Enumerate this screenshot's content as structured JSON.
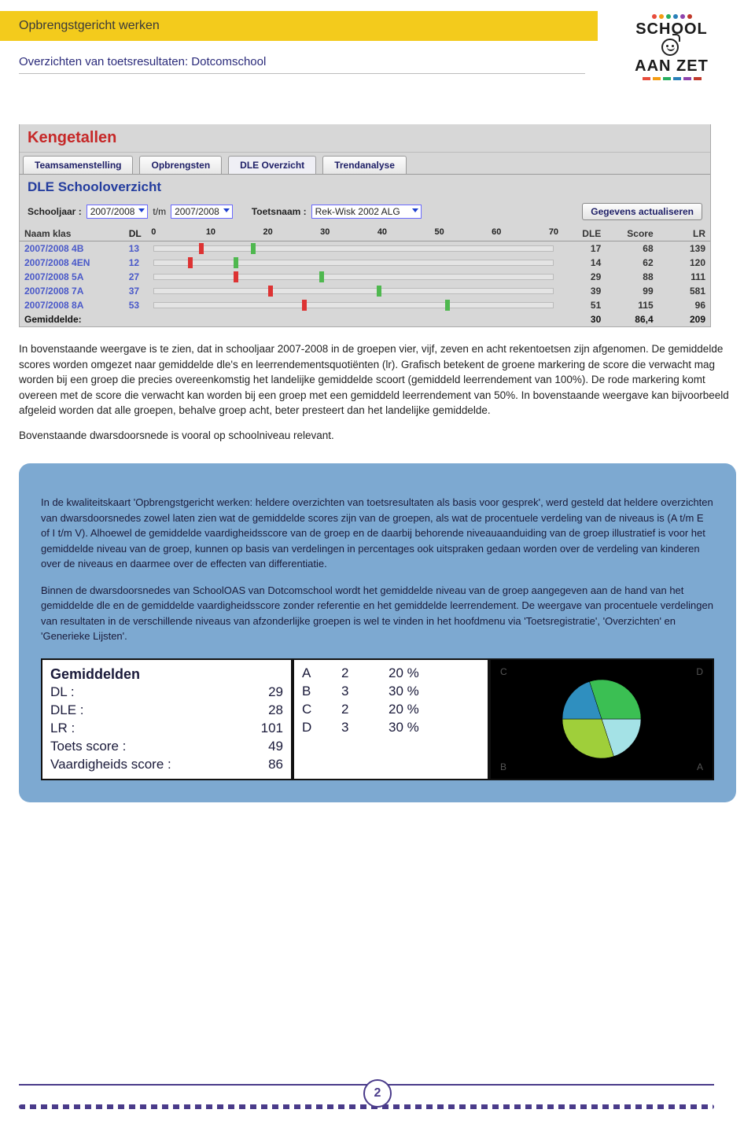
{
  "header": {
    "title": "Opbrengstgericht werken"
  },
  "subtitle": "Overzichten van toetsresultaten: Dotcomschool",
  "logo": {
    "line1": "SCHOOL",
    "line2": "AAN ZET",
    "dot_colors": [
      "#e74c3c",
      "#f39c12",
      "#27ae60",
      "#2980b9",
      "#8e44ad",
      "#c0392b"
    ],
    "bar_colors": [
      "#e74c3c",
      "#f39c12",
      "#27ae60",
      "#2980b9",
      "#8e44ad",
      "#c0392b"
    ]
  },
  "keng": {
    "title": "Kengetallen",
    "tabs": [
      "Teamsamenstelling",
      "Opbrengsten",
      "DLE Overzicht",
      "Trendanalyse"
    ],
    "active_tab": 2,
    "section_title": "DLE Schooloverzicht",
    "controls": {
      "schooljaar_label": "Schooljaar :",
      "from": "2007/2008",
      "tm_label": "t/m",
      "to": "2007/2008",
      "toets_label": "Toetsnaam :",
      "toets": "Rek-Wisk 2002 ALG",
      "button": "Gegevens actualiseren"
    },
    "axis": {
      "min": 0,
      "max": 70,
      "ticks": [
        0,
        10,
        20,
        30,
        40,
        50,
        60,
        70
      ],
      "label_prefix": "DL"
    },
    "columns": [
      "Naam klas",
      "DL",
      "",
      "DLE",
      "Score",
      "LR"
    ],
    "rows": [
      {
        "klas": "2007/2008 4B",
        "dl": 13,
        "green": 17,
        "red": 8,
        "dle": 17,
        "score": 68,
        "lr": 139
      },
      {
        "klas": "2007/2008 4EN",
        "dl": 12,
        "green": 14,
        "red": 6,
        "dle": 14,
        "score": 62,
        "lr": 120
      },
      {
        "klas": "2007/2008 5A",
        "dl": 27,
        "green": 29,
        "red": 14,
        "dle": 29,
        "score": 88,
        "lr": 111
      },
      {
        "klas": "2007/2008 7A",
        "dl": 37,
        "green": 39,
        "red": 20,
        "dle": 39,
        "score": 99,
        "lr": 581
      },
      {
        "klas": "2007/2008 8A",
        "dl": 53,
        "green": 51,
        "red": 26,
        "dle": 51,
        "score": 115,
        "lr": 96
      }
    ],
    "avg": {
      "label": "Gemiddelde:",
      "dle": 30,
      "score": "86,4",
      "lr": 209
    }
  },
  "paragraphs": [
    "In bovenstaande weergave is te zien, dat in schooljaar 2007-2008 in de groepen vier, vijf, zeven en acht rekentoetsen zijn afgenomen. De gemiddelde scores worden omgezet naar gemiddelde dle's en leerrendementsquotiënten (lr). Grafisch betekent de groene markering de score die verwacht mag worden bij een groep die precies overeenkomstig het landelijke gemiddelde scoort (gemiddeld leerrendement van 100%). De rode markering komt overeen met de score die verwacht kan worden bij een groep met een gemiddeld leerrendement van 50%. In bovenstaande weergave kan bijvoorbeeld afgeleid worden dat alle groepen, behalve groep acht, beter presteert dan het landelijke gemiddelde.",
    "Bovenstaande dwarsdoorsnede is vooral op schoolniveau relevant."
  ],
  "callout": {
    "paras": [
      "In de kwaliteitskaart 'Opbrengstgericht werken: heldere overzichten van toetsresultaten als basis voor gesprek', werd gesteld dat heldere overzichten van dwarsdoorsnedes zowel laten zien wat de gemiddelde scores zijn van de groepen, als wat de procentuele verdeling van de niveaus is (A t/m E of I t/m V). Alhoewel de gemiddelde vaardigheidsscore van de groep en de daarbij behorende niveauaanduiding van de groep illustratief is voor het gemiddelde niveau van de groep, kunnen op basis van verdelingen in percentages ook uitspraken gedaan worden over de verdeling van kinderen over de niveaus en daarmee over de effecten van differentiatie.",
      "Binnen de dwarsdoorsnedes van SchoolOAS van Dotcomschool wordt het gemiddelde niveau van de groep aangegeven aan de hand van het gemiddelde dle en de gemiddelde vaardigheidsscore zonder referentie en het gemiddelde leerrendement. De weergave van procentuele verdelingen van resultaten in de verschillende niveaus van afzonderlijke groepen is wel te vinden in het hoofdmenu via 'Toetsregistratie', 'Overzichten' en 'Generieke Lijsten'."
    ]
  },
  "gemiddelden": {
    "title": "Gemiddelden",
    "items": [
      {
        "k": "DL :",
        "v": "29"
      },
      {
        "k": "DLE :",
        "v": "28"
      },
      {
        "k": "LR :",
        "v": "101"
      },
      {
        "k": "Toets score :",
        "v": "49"
      },
      {
        "k": "Vaardigheids score :",
        "v": "86"
      }
    ]
  },
  "levels": {
    "rows": [
      {
        "letter": "A",
        "n": "2",
        "pct": "20 %"
      },
      {
        "letter": "B",
        "n": "3",
        "pct": "30 %"
      },
      {
        "letter": "C",
        "n": "2",
        "pct": "20 %"
      },
      {
        "letter": "D",
        "n": "3",
        "pct": "30 %"
      }
    ]
  },
  "pie": {
    "type": "pie",
    "slices": [
      {
        "label": "A",
        "value": 20,
        "color": "#a4e2e6"
      },
      {
        "label": "B",
        "value": 30,
        "color": "#9fcf3a"
      },
      {
        "label": "C",
        "value": 20,
        "color": "#2f8fbf"
      },
      {
        "label": "D",
        "value": 30,
        "color": "#3bbf53"
      }
    ],
    "background": "#000000",
    "start_angle_deg": 0
  },
  "page_number": "2"
}
